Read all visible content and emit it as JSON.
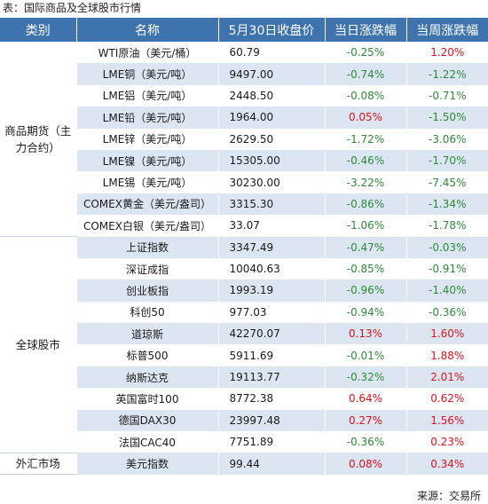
{
  "caption": "表：国际商品及全球股市行情",
  "headers": [
    "类别",
    "名称",
    "5月30日收盘价",
    "当日涨跌幅",
    "当周涨跌幅"
  ],
  "groups": [
    {
      "category": "商品期货（主力合约）",
      "rows": [
        {
          "name": "WTI原油（美元/桶）",
          "price": "60.79",
          "day": "-0.25%",
          "week": "1.20%"
        },
        {
          "name": "LME铜（美元/吨）",
          "price": "9497.00",
          "day": "-0.74%",
          "week": "-1.22%"
        },
        {
          "name": "LME铝（美元/吨）",
          "price": "2448.50",
          "day": "-0.08%",
          "week": "-0.71%"
        },
        {
          "name": "LME铅（美元/吨）",
          "price": "1964.00",
          "day": "0.05%",
          "week": "-1.50%"
        },
        {
          "name": "LME锌（美元/吨）",
          "price": "2629.50",
          "day": "-1.72%",
          "week": "-3.06%"
        },
        {
          "name": "LME镍（美元/吨）",
          "price": "15305.00",
          "day": "-0.46%",
          "week": "-1.70%"
        },
        {
          "name": "LME锡（美元/吨）",
          "price": "30230.00",
          "day": "-3.22%",
          "week": "-7.45%"
        },
        {
          "name": "COMEX黄金（美元/盎司）",
          "price": "3315.30",
          "day": "-0.86%",
          "week": "-1.34%"
        },
        {
          "name": "COMEX白银（美元/盎司）",
          "price": "33.07",
          "day": "-1.06%",
          "week": "-1.78%"
        }
      ]
    },
    {
      "category": "全球股市",
      "rows": [
        {
          "name": "上证指数",
          "price": "3347.49",
          "day": "-0.47%",
          "week": "-0.03%"
        },
        {
          "name": "深证成指",
          "price": "10040.63",
          "day": "-0.85%",
          "week": "-0.91%"
        },
        {
          "name": "创业板指",
          "price": "1993.19",
          "day": "-0.96%",
          "week": "-1.40%"
        },
        {
          "name": "科创50",
          "price": "977.03",
          "day": "-0.94%",
          "week": "-0.36%"
        },
        {
          "name": "道琼斯",
          "price": "42270.07",
          "day": "0.13%",
          "week": "1.60%"
        },
        {
          "name": "标普500",
          "price": "5911.69",
          "day": "-0.01%",
          "week": "1.88%"
        },
        {
          "name": "纳斯达克",
          "price": "19113.77",
          "day": "-0.32%",
          "week": "2.01%"
        },
        {
          "name": "英国富时100",
          "price": "8772.38",
          "day": "0.64%",
          "week": "0.62%"
        },
        {
          "name": "德国DAX30",
          "price": "23997.48",
          "day": "0.27%",
          "week": "1.56%"
        },
        {
          "name": "法国CAC40",
          "price": "7751.89",
          "day": "-0.36%",
          "week": "0.23%"
        }
      ]
    },
    {
      "category": "外汇市场",
      "rows": [
        {
          "name": "美元指数",
          "price": "99.44",
          "day": "0.08%",
          "week": "0.34%"
        }
      ]
    }
  ],
  "source": "来源：交易所",
  "colors": {
    "header_bg": "#3f73ad",
    "stripe_bg": "#dce6f3",
    "up": "#e0121b",
    "down": "#2e8a37"
  }
}
